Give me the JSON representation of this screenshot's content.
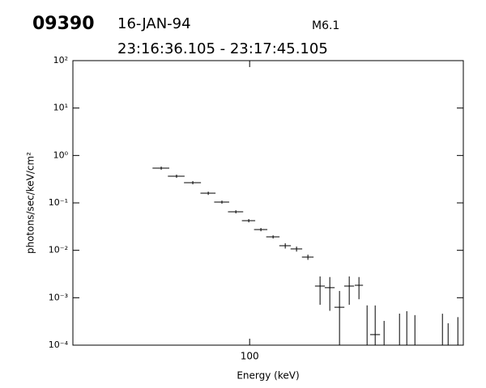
{
  "header": {
    "event": "09390",
    "date": "16-JAN-94",
    "class": "M6.1",
    "interval": "23:16:36.105 - 23:17:45.105"
  },
  "chart_data": {
    "type": "errorbar",
    "x_label": "Energy (keV)",
    "y_label": "photons/sec/keV/cm²",
    "log_x": true,
    "log_y": true,
    "color": "#000000",
    "xlim": [
      20,
      700
    ],
    "xticks": [
      100
    ],
    "ylim": [
      0.0001,
      100
    ],
    "yticks": [
      {
        "value": 100,
        "label": "10²"
      },
      {
        "value": 10,
        "label": "10¹"
      },
      {
        "value": 1,
        "label": "10⁰"
      },
      {
        "value": 0.1,
        "label": "10⁻¹"
      },
      {
        "value": 0.01,
        "label": "10⁻²"
      },
      {
        "value": 0.001,
        "label": "10⁻³"
      },
      {
        "value": 0.0001,
        "label": "10⁻⁴"
      }
    ],
    "x": [
      44.7,
      51.4,
      59.6,
      68.6,
      77.7,
      88.2,
      99.2,
      110.8,
      123.8,
      138.3,
      153.3,
      170.0,
      189.9,
      207.5,
      226.7,
      247.7,
      270.6,
      313.7
    ],
    "x_err": [
      3.4,
      3.9,
      4.6,
      4.7,
      5.3,
      6.1,
      6.0,
      6.7,
      7.5,
      7.3,
      8.1,
      9.0,
      8.6,
      9.4,
      10.3,
      11.2,
      10.2,
      14.2
    ],
    "values": [
      0.541,
      0.366,
      0.267,
      0.16,
      0.104,
      0.065,
      0.0422,
      0.0274,
      0.0192,
      0.0125,
      0.0107,
      0.0072,
      0.00176,
      0.00163,
      0.00063,
      0.00176,
      0.00183,
      0.000167
    ],
    "y_err": [
      0.043,
      0.029,
      0.021,
      0.013,
      0.008,
      0.005,
      0.0034,
      0.0022,
      0.0015,
      0.0016,
      0.0013,
      0.0009,
      0.00105,
      0.0011,
      0.00076,
      0.00105,
      0.0009,
      0.00052
    ],
    "upper_limits": {
      "x": [
        291.4,
        340.2,
        391.5,
        418.3,
        450.4,
        578.8,
        609.5,
        666
      ],
      "values": [
        0.00069,
        0.000325,
        0.000462,
        0.00052,
        0.00043,
        0.00046,
        0.00029,
        0.00039
      ]
    }
  }
}
